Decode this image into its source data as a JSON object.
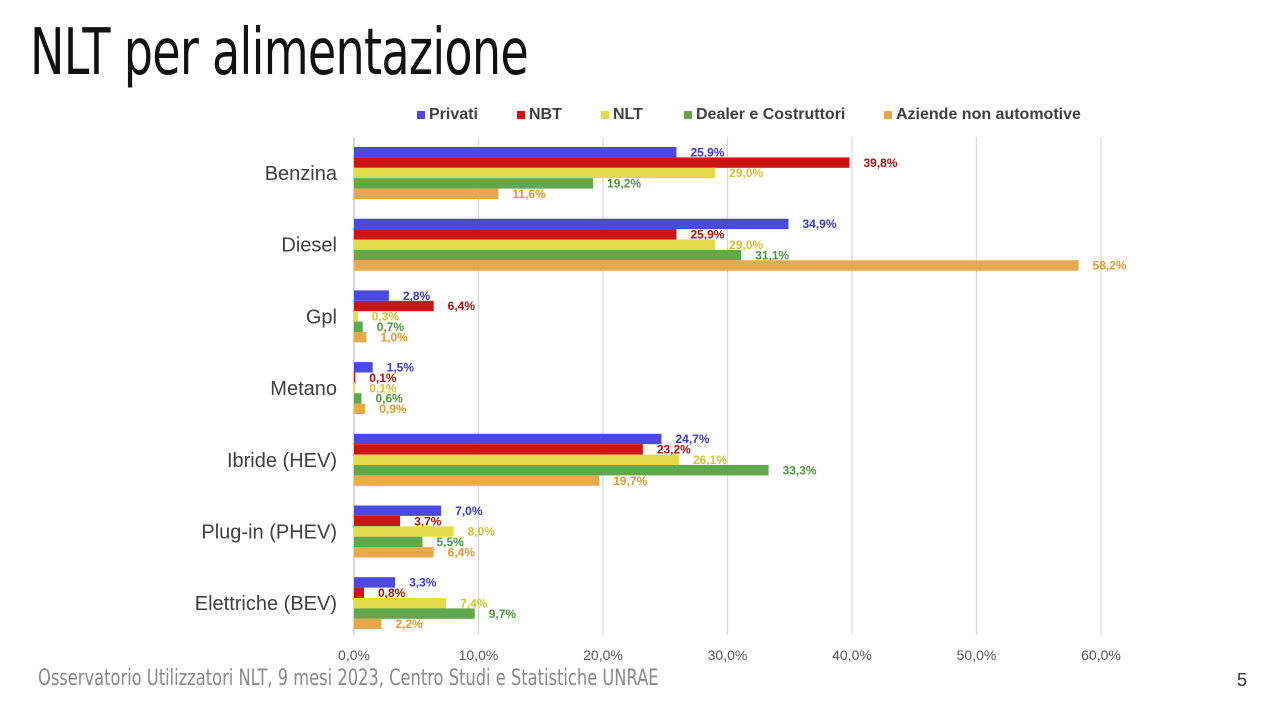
{
  "slide": {
    "title": "NLT per alimentazione",
    "footer": "Osservatorio Utilizzatori NLT, 9 mesi 2023, Centro Studi e Statistiche UNRAE",
    "page_number": "5"
  },
  "chart_data": {
    "type": "bar",
    "orientation": "horizontal",
    "title": "",
    "xlabel": "",
    "ylabel": "",
    "xlim": [
      0,
      60
    ],
    "x_ticks": [
      "0,0%",
      "10,0%",
      "20,0%",
      "30,0%",
      "40,0%",
      "50,0%",
      "60,0%"
    ],
    "grid": "vertical",
    "legend_position": "top",
    "categories": [
      "Benzina",
      "Diesel",
      "Gpl",
      "Metano",
      "Ibride (HEV)",
      "Plug-in (PHEV)",
      "Elettriche (BEV)"
    ],
    "series": [
      {
        "name": "Privati",
        "color": "#4a4ae0",
        "label_color": "#3a3ad0",
        "values": [
          25.9,
          34.9,
          2.8,
          1.5,
          24.7,
          7.0,
          3.3
        ],
        "labels": [
          "25,9%",
          "34,9%",
          "2,8%",
          "1,5%",
          "24,7%",
          "7,0%",
          "3,3%"
        ]
      },
      {
        "name": "NBT",
        "color": "#cc1414",
        "label_color": "#b01010",
        "values": [
          39.8,
          25.9,
          6.4,
          0.1,
          23.2,
          3.7,
          0.8
        ],
        "labels": [
          "39,8%",
          "25,9%",
          "6,4%",
          "0,1%",
          "23,2%",
          "3,7%",
          "0,8%"
        ]
      },
      {
        "name": "NLT",
        "color": "#e3d94a",
        "label_color": "#d6c52a",
        "values": [
          29.0,
          29.0,
          0.3,
          0.1,
          26.1,
          8.0,
          7.4
        ],
        "labels": [
          "29,0%",
          "29,0%",
          "0,3%",
          "0,1%",
          "26,1%",
          "8,0%",
          "7,4%"
        ]
      },
      {
        "name": "Dealer e Costruttori",
        "color": "#5fa84b",
        "label_color": "#4e9a3a",
        "values": [
          19.2,
          31.1,
          0.7,
          0.6,
          33.3,
          5.5,
          9.7
        ],
        "labels": [
          "19,2%",
          "31,1%",
          "0,7%",
          "0,6%",
          "33,3%",
          "5,5%",
          "9,7%"
        ]
      },
      {
        "name": "Aziende non automotive",
        "color": "#e8a94e",
        "label_color": "#e29a2e",
        "values": [
          11.6,
          58.2,
          1.0,
          0.9,
          19.7,
          6.4,
          2.2
        ],
        "labels": [
          "11,6%",
          "58,2%",
          "1,0%",
          "0,9%",
          "19,7%",
          "6,4%",
          "2,2%"
        ]
      }
    ]
  }
}
